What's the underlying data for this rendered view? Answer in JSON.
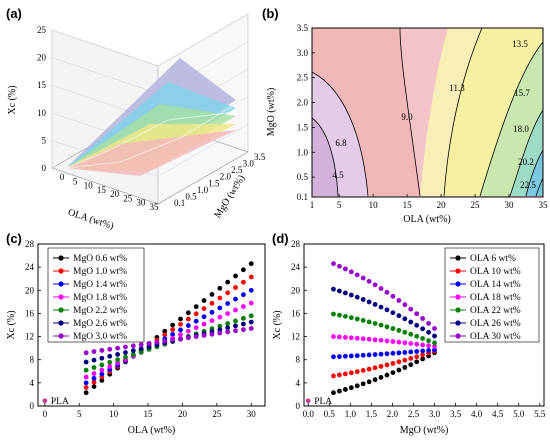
{
  "chart_data": [
    {
      "panel": "(a)",
      "type": "surface3d",
      "xlabel": "OLA (wt%)",
      "ylabel": "MgO (wt%)",
      "zlabel": "Xc (%)",
      "x_ticks": [
        "0",
        "5",
        "10",
        "15",
        "20",
        "25",
        "30",
        "35"
      ],
      "y_ticks": [
        "0.1",
        "0.5",
        "1.0",
        "1.5",
        "2.0",
        "2.5",
        "3.0",
        "3.5"
      ],
      "z_ticks": [
        "0",
        "5",
        "10",
        "15",
        "20",
        "25"
      ],
      "zlim": [
        0,
        25
      ]
    },
    {
      "panel": "(b)",
      "type": "contour",
      "xlabel": "OLA (wt%)",
      "ylabel": "MgO (wt%)",
      "xlim": [
        1,
        35
      ],
      "ylim": [
        0.1,
        3.5
      ],
      "x_ticks": [
        "1",
        "5",
        "10",
        "15",
        "20",
        "25",
        "30",
        "35"
      ],
      "y_ticks": [
        "0.1",
        "0.5",
        "1.0",
        "1.5",
        "2.0",
        "2.5",
        "3.0",
        "3.5"
      ],
      "contour_levels": [
        "4.5",
        "6.8",
        "9.0",
        "11.3",
        "13.5",
        "15.7",
        "18.0",
        "20.2",
        "22.5"
      ]
    },
    {
      "panel": "(c)",
      "type": "scatter",
      "xlabel": "OLA (wt%)",
      "ylabel": "Xc (%)",
      "xlim": [
        -1,
        32
      ],
      "ylim": [
        0,
        28
      ],
      "x_ticks": [
        0,
        5,
        10,
        15,
        20,
        25,
        30
      ],
      "y_ticks": [
        0,
        4,
        8,
        12,
        16,
        20,
        24,
        28
      ],
      "x_start": 6,
      "x_end": 30,
      "n_points": 22,
      "pla_point": {
        "label": "PLA",
        "x": 0,
        "y": 0.9
      },
      "series": [
        {
          "name": "MgO 0.6 wt%",
          "color": "#000000",
          "y_start": 2.3,
          "y_end": 24.6
        },
        {
          "name": "MgO 1.0 wt%",
          "color": "#ff0000",
          "y_start": 3.2,
          "y_end": 22.3
        },
        {
          "name": "MgO 1.4 wt%",
          "color": "#0000ff",
          "y_start": 4.0,
          "y_end": 20.0
        },
        {
          "name": "MgO 1.8 wt%",
          "color": "#ff00ff",
          "y_start": 5.0,
          "y_end": 17.8
        },
        {
          "name": "MgO 2.2 wt%",
          "color": "#008000",
          "y_start": 6.2,
          "y_end": 15.6
        },
        {
          "name": "MgO 2.6 wt%",
          "color": "#000080",
          "y_start": 7.6,
          "y_end": 14.5
        },
        {
          "name": "MgO 3.0 wt%",
          "color": "#9900cc",
          "y_start": 9.2,
          "y_end": 13.4
        }
      ]
    },
    {
      "panel": "(d)",
      "type": "scatter",
      "xlabel": "MgO (wt%)",
      "ylabel": "Xc (%)",
      "xlim": [
        -0.1,
        5.6
      ],
      "ylim": [
        0,
        28
      ],
      "x_ticks": [
        "0.0",
        "0.5",
        "1.0",
        "1.5",
        "2.0",
        "2.5",
        "3.0",
        "3.5",
        "4.0",
        "4.5",
        "5.0",
        "5.5"
      ],
      "y_ticks": [
        0,
        4,
        8,
        12,
        16,
        20,
        24,
        28
      ],
      "x_start": 0.6,
      "x_end": 3.0,
      "n_points": 18,
      "pla_point": {
        "label": "PLA",
        "x": 0,
        "y": 0.9
      },
      "series": [
        {
          "name": "OLA  6 wt%",
          "color": "#000000",
          "y_start": 2.3,
          "y_end": 9.2
        },
        {
          "name": "OLA 10 wt%",
          "color": "#ff0000",
          "y_start": 5.2,
          "y_end": 9.5
        },
        {
          "name": "OLA 14 wt%",
          "color": "#0000ff",
          "y_start": 8.5,
          "y_end": 9.7
        },
        {
          "name": "OLA 18 wt%",
          "color": "#ff00ff",
          "y_start": 12.0,
          "y_end": 10.3
        },
        {
          "name": "OLA 22 wt%",
          "color": "#008000",
          "y_start": 15.9,
          "y_end": 10.9
        },
        {
          "name": "OLA 26 wt%",
          "color": "#000080",
          "y_start": 20.2,
          "y_end": 12.1
        },
        {
          "name": "OLA 30 wt%",
          "color": "#9900cc",
          "y_start": 24.6,
          "y_end": 13.4
        }
      ]
    }
  ]
}
